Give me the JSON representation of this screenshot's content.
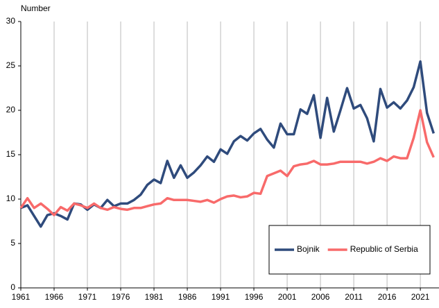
{
  "chart_data": {
    "type": "line",
    "y_axis_label": "Number",
    "x": [
      1961,
      1962,
      1963,
      1964,
      1965,
      1966,
      1967,
      1968,
      1969,
      1970,
      1971,
      1972,
      1973,
      1974,
      1975,
      1976,
      1977,
      1978,
      1979,
      1980,
      1981,
      1982,
      1983,
      1984,
      1985,
      1986,
      1987,
      1988,
      1989,
      1990,
      1991,
      1992,
      1993,
      1994,
      1995,
      1996,
      1997,
      1998,
      1999,
      2000,
      2001,
      2002,
      2003,
      2004,
      2005,
      2006,
      2007,
      2008,
      2009,
      2010,
      2011,
      2012,
      2013,
      2014,
      2015,
      2016,
      2017,
      2018,
      2019,
      2020,
      2021,
      2022,
      2023
    ],
    "series": [
      {
        "name": "Bojnik",
        "color": "#2f4b7c",
        "values": [
          9.0,
          9.3,
          8.1,
          6.9,
          8.2,
          8.4,
          8.1,
          7.7,
          9.5,
          9.4,
          8.8,
          9.4,
          9.0,
          9.9,
          9.2,
          9.5,
          9.5,
          9.9,
          10.5,
          11.6,
          12.2,
          11.8,
          14.3,
          12.4,
          13.8,
          12.4,
          13.0,
          13.8,
          14.8,
          14.2,
          15.6,
          15.1,
          16.5,
          17.1,
          16.6,
          17.4,
          17.9,
          16.7,
          15.8,
          18.5,
          17.3,
          17.3,
          20.1,
          19.6,
          21.7,
          16.9,
          21.4,
          17.6,
          20.0,
          22.5,
          20.2,
          20.6,
          19.1,
          16.5,
          22.4,
          20.3,
          20.9,
          20.2,
          21.1,
          22.6,
          25.5,
          19.7,
          17.4
        ]
      },
      {
        "name": "Republic of Serbia",
        "color": "#f86a6a",
        "values": [
          9.0,
          10.1,
          9.0,
          9.5,
          8.9,
          8.2,
          9.1,
          8.7,
          9.5,
          9.3,
          9.0,
          9.5,
          9.0,
          8.8,
          9.1,
          8.9,
          8.8,
          9.0,
          9.0,
          9.2,
          9.4,
          9.5,
          10.1,
          9.9,
          9.9,
          9.9,
          9.8,
          9.7,
          9.9,
          9.6,
          10.0,
          10.3,
          10.4,
          10.2,
          10.3,
          10.7,
          10.6,
          12.6,
          12.9,
          13.2,
          12.6,
          13.7,
          13.9,
          14.0,
          14.3,
          13.9,
          13.9,
          14.0,
          14.2,
          14.2,
          14.2,
          14.2,
          14.0,
          14.2,
          14.6,
          14.3,
          14.8,
          14.6,
          14.6,
          16.9,
          20.0,
          16.4,
          14.7
        ]
      }
    ],
    "xlim": [
      1961,
      2023.8
    ],
    "xticks": [
      1961,
      1966,
      1971,
      1976,
      1981,
      1986,
      1991,
      1996,
      2001,
      2006,
      2011,
      2016,
      2021
    ],
    "ylim": [
      0,
      30
    ],
    "yticks": [
      0,
      5,
      10,
      15,
      20,
      25,
      30
    ],
    "grid": "x",
    "legend": "lower right"
  }
}
